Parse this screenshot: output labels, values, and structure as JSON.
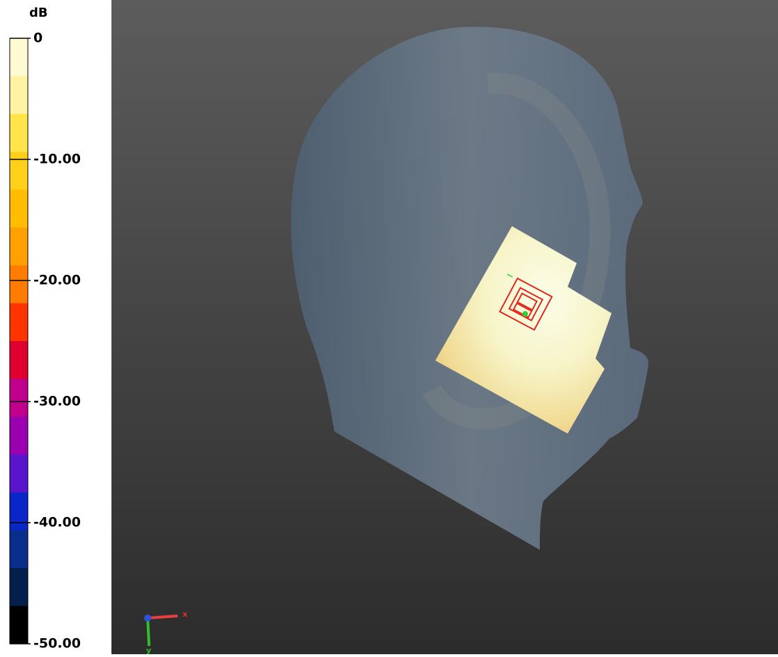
{
  "colorbar": {
    "unit": "dB",
    "lim": [
      -50,
      0
    ],
    "ticks": [
      0,
      {
        "value": -10,
        "label": "-10.00"
      },
      {
        "value": -20,
        "label": "-20.00"
      },
      {
        "value": -30,
        "label": "-30.00"
      },
      {
        "value": -40,
        "label": "-40.00"
      },
      {
        "value": -50,
        "label": "-50.00"
      }
    ],
    "colors": [
      "#fffad2",
      "#fff2a2",
      "#ffe44a",
      "#ffd01a",
      "#ffbc00",
      "#ffa000",
      "#ff7c00",
      "#ff3400",
      "#e00030",
      "#c0008c",
      "#9a00b0",
      "#5a14cc",
      "#0a26c8",
      "#0a2e8c",
      "#041f4c",
      "#000000"
    ]
  },
  "axes_triad": {
    "x": "x",
    "y": "y"
  }
}
